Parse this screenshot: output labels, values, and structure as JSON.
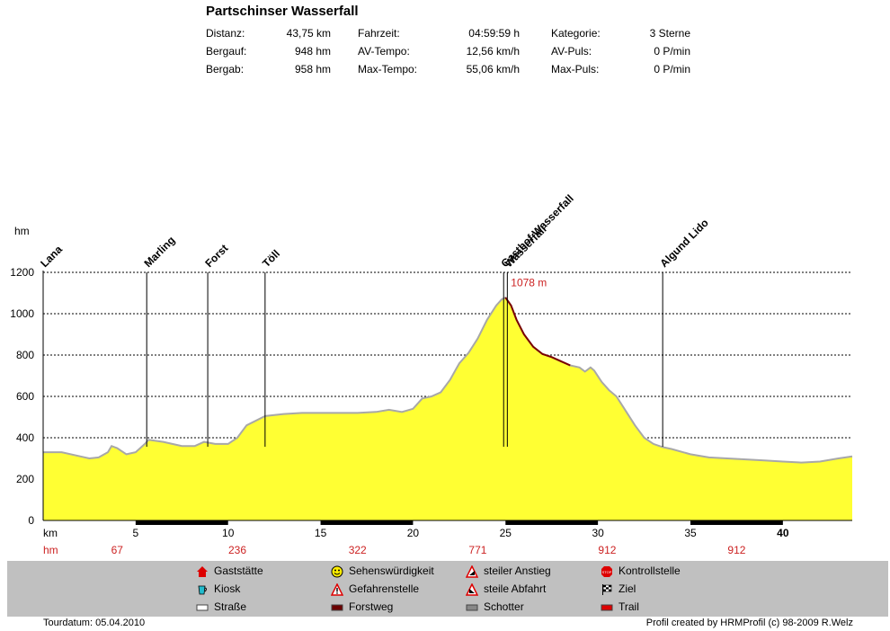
{
  "title": "Partschinser Wasserfall",
  "stats": {
    "col1": [
      {
        "label": "Distanz:",
        "value": "43,75 km"
      },
      {
        "label": "Bergauf:",
        "value": "948 hm"
      },
      {
        "label": "Bergab:",
        "value": "958 hm"
      }
    ],
    "col2": [
      {
        "label": "Fahrzeit:",
        "value": "04:59:59 h"
      },
      {
        "label": "AV-Tempo:",
        "value": "12,56 km/h"
      },
      {
        "label": "Max-Tempo:",
        "value": "55,06 km/h"
      }
    ],
    "col3": [
      {
        "label": "Kategorie:",
        "value": "3 Sterne"
      },
      {
        "label": "AV-Puls:",
        "value": "0 P/min"
      },
      {
        "label": "Max-Puls:",
        "value": "0 P/min"
      }
    ]
  },
  "chart_data": {
    "type": "area",
    "ylabel": "hm",
    "xlabel": "km",
    "xlim": [
      0,
      43.75
    ],
    "ylim": [
      0,
      1200
    ],
    "y_ticks": [
      0,
      200,
      400,
      600,
      800,
      1000,
      1200
    ],
    "x_ticks": [
      5,
      10,
      15,
      20,
      25,
      30,
      35,
      40
    ],
    "grid": true,
    "fill_color": "#ffff33",
    "profile": [
      [
        0,
        330
      ],
      [
        1,
        330
      ],
      [
        2,
        310
      ],
      [
        2.5,
        300
      ],
      [
        3,
        305
      ],
      [
        3.5,
        330
      ],
      [
        3.7,
        360
      ],
      [
        4,
        350
      ],
      [
        4.5,
        320
      ],
      [
        5,
        330
      ],
      [
        5.5,
        370
      ],
      [
        5.7,
        390
      ],
      [
        6.5,
        380
      ],
      [
        7.5,
        360
      ],
      [
        8.2,
        360
      ],
      [
        8.7,
        380
      ],
      [
        9.3,
        370
      ],
      [
        10,
        370
      ],
      [
        10.5,
        400
      ],
      [
        11,
        460
      ],
      [
        12,
        505
      ],
      [
        13,
        515
      ],
      [
        14,
        520
      ],
      [
        15,
        520
      ],
      [
        16,
        520
      ],
      [
        17,
        520
      ],
      [
        18,
        525
      ],
      [
        18.7,
        535
      ],
      [
        19.4,
        525
      ],
      [
        20,
        540
      ],
      [
        20.5,
        590
      ],
      [
        21,
        600
      ],
      [
        21.5,
        620
      ],
      [
        22,
        680
      ],
      [
        22.5,
        760
      ],
      [
        23,
        810
      ],
      [
        23.5,
        880
      ],
      [
        24,
        970
      ],
      [
        24.5,
        1040
      ],
      [
        24.8,
        1070
      ],
      [
        25,
        1078
      ],
      [
        25.3,
        1040
      ],
      [
        25.6,
        970
      ],
      [
        26,
        900
      ],
      [
        26.5,
        840
      ],
      [
        27,
        805
      ],
      [
        27.5,
        790
      ],
      [
        28,
        770
      ],
      [
        28.5,
        750
      ],
      [
        29,
        740
      ],
      [
        29.3,
        720
      ],
      [
        29.6,
        740
      ],
      [
        29.8,
        725
      ],
      [
        30.2,
        670
      ],
      [
        30.6,
        630
      ],
      [
        31,
        600
      ],
      [
        31.5,
        530
      ],
      [
        32,
        460
      ],
      [
        32.5,
        400
      ],
      [
        33,
        370
      ],
      [
        33.5,
        355
      ],
      [
        34,
        345
      ],
      [
        35,
        320
      ],
      [
        36,
        305
      ],
      [
        37,
        300
      ],
      [
        38,
        295
      ],
      [
        39,
        290
      ],
      [
        40,
        285
      ],
      [
        41,
        280
      ],
      [
        42,
        285
      ],
      [
        43,
        300
      ],
      [
        43.75,
        310
      ]
    ],
    "highlight_range": [
      25,
      28.8
    ],
    "peak": {
      "km": 25,
      "label": "1078 m"
    },
    "waypoints": [
      {
        "name": "Lana",
        "km": 0
      },
      {
        "name": "Marling",
        "km": 5.6
      },
      {
        "name": "Forst",
        "km": 8.9
      },
      {
        "name": "Töll",
        "km": 12
      },
      {
        "name": "Gasthof Wasserfall",
        "km": 24.9
      },
      {
        "name": "Wasserfall",
        "km": 25.1
      },
      {
        "name": "Algund Lido",
        "km": 33.5
      }
    ],
    "km_row_label": "km",
    "hm_row_label": "hm",
    "hm_values": [
      {
        "km": 4,
        "value": "67"
      },
      {
        "km": 10.5,
        "value": "236"
      },
      {
        "km": 17,
        "value": "322"
      },
      {
        "km": 23.5,
        "value": "771"
      },
      {
        "km": 30.5,
        "value": "912"
      },
      {
        "km": 37.5,
        "value": "912"
      }
    ],
    "surface_segments": [
      [
        5,
        10
      ],
      [
        15,
        20
      ],
      [
        25,
        30
      ],
      [
        35,
        40
      ]
    ]
  },
  "legend": [
    {
      "label": "Gaststätte",
      "icon": "house-icon"
    },
    {
      "label": "Sehenswürdigkeit",
      "icon": "smiley-icon"
    },
    {
      "label": "steiler Anstieg",
      "icon": "climb-warning-icon"
    },
    {
      "label": "Kontrollstelle",
      "icon": "stop-icon"
    },
    {
      "label": "Kiosk",
      "icon": "cup-icon"
    },
    {
      "label": "Gefahrenstelle",
      "icon": "danger-icon"
    },
    {
      "label": "steile Abfahrt",
      "icon": "descent-warning-icon"
    },
    {
      "label": "Ziel",
      "icon": "checkered-flag-icon"
    },
    {
      "label": "Straße",
      "icon": "road-swatch"
    },
    {
      "label": "Forstweg",
      "icon": "forest-road-swatch"
    },
    {
      "label": "Schotter",
      "icon": "gravel-swatch"
    },
    {
      "label": "Trail",
      "icon": "trail-swatch"
    }
  ],
  "footer": {
    "left": "Tourdatum: 05.04.2010",
    "right": "Profil created by HRMProfil (c) 98-2009 R.Welz"
  },
  "colors": {
    "accent_red": "#cc2222",
    "trail_dark": "#7a0000"
  }
}
